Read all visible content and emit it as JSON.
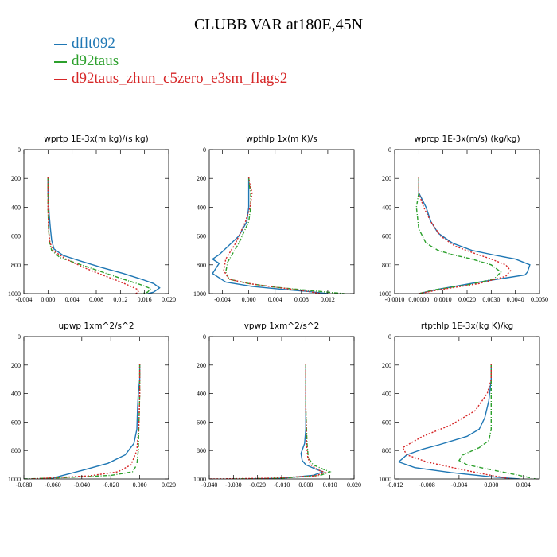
{
  "page_title": "CLUBB VAR at180E,45N",
  "legend": [
    {
      "label": "dflt092",
      "color": "#1f77b4"
    },
    {
      "label": "d92taus",
      "color": "#2ca02c"
    },
    {
      "label": "d92taus_zhun_c5zero_e3sm_flags2",
      "color": "#d62728"
    }
  ],
  "chart_data": [
    {
      "type": "line",
      "title": "wprtp  1E-3x(m kg)/(s kg)",
      "xlim": [
        -0.004,
        0.02
      ],
      "ylim": [
        0,
        1000
      ],
      "xticks": [
        -0.004,
        0.0,
        0.004,
        0.008,
        0.012,
        0.016,
        0.02
      ],
      "xticklabels": [
        "-0.004",
        "0.000",
        "0.004",
        "0.008",
        "0.012",
        "0.016",
        "0.020"
      ],
      "yticks": [
        0,
        200,
        400,
        600,
        800,
        1000
      ],
      "series": [
        {
          "name": "dflt092",
          "color": "#1f77b4",
          "dash": "",
          "x": [
            0,
            0,
            0.0002,
            0.0004,
            0.0006,
            0.001,
            0.0025,
            0.0055,
            0.009,
            0.0125,
            0.0155,
            0.0175,
            0.0185,
            0.0175,
            0.0165
          ],
          "y": [
            190,
            300,
            450,
            550,
            630,
            690,
            735,
            775,
            820,
            860,
            900,
            930,
            960,
            990,
            1000
          ]
        },
        {
          "name": "d92taus",
          "color": "#2ca02c",
          "dash": "5,2,1,2",
          "x": [
            0,
            0,
            0.0001,
            0.0003,
            0.0006,
            0.002,
            0.0055,
            0.009,
            0.0125,
            0.0155,
            0.017,
            0.0165,
            0.0155
          ],
          "y": [
            190,
            400,
            560,
            650,
            700,
            750,
            800,
            850,
            900,
            940,
            965,
            990,
            1000
          ]
        },
        {
          "name": "d92taus_zhun_c5zero_e3sm_flags2",
          "color": "#d62728",
          "dash": "2,2",
          "x": [
            0,
            0,
            0.0001,
            0.0003,
            0.0008,
            0.003,
            0.006,
            0.009,
            0.0115,
            0.0135,
            0.0148,
            0.015,
            0.0145
          ],
          "y": [
            190,
            400,
            560,
            640,
            700,
            760,
            820,
            870,
            910,
            945,
            970,
            990,
            1000
          ]
        }
      ]
    },
    {
      "type": "line",
      "title": "wpthlp  1x(m K)/s",
      "xlim": [
        -0.006,
        0.016
      ],
      "ylim": [
        0,
        1000
      ],
      "xticks": [
        -0.004,
        0.0,
        0.004,
        0.008,
        0.012
      ],
      "xticklabels": [
        "-0.004",
        "0.000",
        "0.004",
        "0.008",
        "0.012"
      ],
      "yticks": [
        0,
        200,
        400,
        600,
        800,
        1000
      ],
      "series": [
        {
          "name": "dflt092",
          "color": "#1f77b4",
          "dash": "",
          "x": [
            0,
            0,
            0,
            -0.0003,
            -0.0015,
            -0.0045,
            -0.0055,
            -0.0045,
            -0.0055,
            -0.0035,
            0.0005,
            0.005,
            0.009,
            0.012
          ],
          "y": [
            190,
            300,
            400,
            500,
            600,
            730,
            760,
            790,
            860,
            920,
            950,
            970,
            985,
            1000
          ]
        },
        {
          "name": "d92taus",
          "color": "#2ca02c",
          "dash": "5,2,1,2",
          "x": [
            0,
            0.0001,
            0.0003,
            0.0003,
            0,
            -0.0015,
            -0.0032,
            -0.0035,
            -0.003,
            0,
            0.004,
            0.0085,
            0.012,
            0.0145
          ],
          "y": [
            190,
            250,
            300,
            400,
            500,
            650,
            780,
            850,
            900,
            930,
            955,
            975,
            990,
            1000
          ]
        },
        {
          "name": "d92taus_zhun_c5zero_e3sm_flags2",
          "color": "#d62728",
          "dash": "2,2",
          "x": [
            0,
            0.0002,
            0.0005,
            0.0002,
            -0.0005,
            -0.002,
            -0.0035,
            -0.0038,
            -0.003,
            0,
            0.004,
            0.008,
            0.011
          ],
          "y": [
            190,
            250,
            300,
            400,
            500,
            650,
            760,
            840,
            900,
            930,
            955,
            978,
            1000
          ]
        }
      ]
    },
    {
      "type": "line",
      "title": "wprcp  1E-3x(m/s) (kg/kg)",
      "xlim": [
        -0.001,
        0.005
      ],
      "ylim": [
        0,
        1000
      ],
      "xticks": [
        -0.001,
        0.0,
        0.001,
        0.002,
        0.003,
        0.004,
        0.005
      ],
      "xticklabels": [
        "-0.0010",
        "0.00000",
        "0.0010",
        "0.0020",
        "0.0030",
        "0.0040",
        "0.0050"
      ],
      "yticks": [
        0,
        200,
        400,
        600,
        800,
        1000
      ],
      "series": [
        {
          "name": "dflt092",
          "color": "#1f77b4",
          "dash": "",
          "x": [
            0,
            0,
            0.0003,
            0.0005,
            0.0008,
            0.0014,
            0.0022,
            0.0032,
            0.004,
            0.0046,
            0.0045,
            0.0044,
            0.0025,
            0.0008,
            0
          ],
          "y": [
            190,
            300,
            400,
            500,
            580,
            650,
            700,
            735,
            760,
            800,
            850,
            870,
            920,
            970,
            1000
          ]
        },
        {
          "name": "d92taus",
          "color": "#2ca02c",
          "dash": "5,2,1,2",
          "x": [
            0,
            0,
            -0.0001,
            0,
            0.0003,
            0.0008,
            0.0014,
            0.0022,
            0.003,
            0.0034,
            0.0031,
            0.002,
            0.0006,
            0
          ],
          "y": [
            190,
            300,
            400,
            550,
            650,
            700,
            730,
            760,
            800,
            850,
            900,
            940,
            975,
            1000
          ]
        },
        {
          "name": "d92taus_zhun_c5zero_e3sm_flags2",
          "color": "#d62728",
          "dash": "2,2",
          "x": [
            0,
            0,
            0.0002,
            0.0005,
            0.0009,
            0.0015,
            0.0023,
            0.003,
            0.0036,
            0.0038,
            0.0036,
            0.0025,
            0.0008,
            0
          ],
          "y": [
            190,
            300,
            400,
            500,
            600,
            670,
            720,
            760,
            800,
            840,
            880,
            930,
            975,
            1000
          ]
        }
      ]
    },
    {
      "type": "line",
      "title": "upwp   1xm^2/s^2",
      "xlim": [
        -0.08,
        0.02
      ],
      "ylim": [
        0,
        1000
      ],
      "xticks": [
        -0.08,
        -0.06,
        -0.04,
        -0.02,
        0.0,
        0.02
      ],
      "xticklabels": [
        "-0.080",
        "-0.060",
        "-0.040",
        "-0.020",
        "0.000",
        "0.020"
      ],
      "yticks": [
        0,
        200,
        400,
        600,
        800,
        1000
      ],
      "series": [
        {
          "name": "dflt092",
          "color": "#1f77b4",
          "dash": "",
          "x": [
            0,
            0,
            -0.001,
            -0.0015,
            -0.002,
            -0.004,
            -0.01,
            -0.022,
            -0.04,
            -0.055,
            -0.062
          ],
          "y": [
            190,
            300,
            400,
            500,
            650,
            750,
            830,
            890,
            940,
            980,
            1000
          ]
        },
        {
          "name": "d92taus",
          "color": "#2ca02c",
          "dash": "5,2,1,2",
          "x": [
            0,
            0,
            -0.0005,
            -0.001,
            -0.002,
            -0.005,
            -0.02,
            -0.05,
            -0.08
          ],
          "y": [
            190,
            400,
            600,
            800,
            900,
            950,
            975,
            990,
            1000
          ]
        },
        {
          "name": "d92taus_zhun_c5zero_e3sm_flags2",
          "color": "#d62728",
          "dash": "2,2",
          "x": [
            0,
            0,
            -0.0005,
            -0.002,
            -0.006,
            -0.015,
            -0.035,
            -0.06,
            -0.075
          ],
          "y": [
            190,
            400,
            600,
            800,
            900,
            950,
            978,
            992,
            1000
          ]
        }
      ]
    },
    {
      "type": "line",
      "title": "vpwp   1xm^2/s^2",
      "xlim": [
        -0.04,
        0.02
      ],
      "ylim": [
        0,
        1000
      ],
      "xticks": [
        -0.04,
        -0.03,
        -0.02,
        -0.01,
        0.0,
        0.01,
        0.02
      ],
      "xticklabels": [
        "-0.040",
        "-0.030",
        "-0.020",
        "-0.010",
        "0.000",
        "0.010",
        "0.020"
      ],
      "yticks": [
        0,
        200,
        400,
        600,
        800,
        1000
      ],
      "series": [
        {
          "name": "dflt092",
          "color": "#1f77b4",
          "dash": "",
          "x": [
            0,
            0,
            0,
            -0.0005,
            -0.002,
            -0.0015,
            0,
            0.004,
            0.007,
            0.003,
            -0.01,
            -0.022
          ],
          "y": [
            190,
            400,
            650,
            750,
            820,
            870,
            900,
            930,
            950,
            975,
            995,
            1000
          ]
        },
        {
          "name": "d92taus",
          "color": "#2ca02c",
          "dash": "5,2,1,2",
          "x": [
            0,
            0,
            0.0005,
            0.001,
            0.003,
            0.007,
            0.01,
            0.006,
            -0.01,
            -0.03
          ],
          "y": [
            190,
            500,
            750,
            850,
            900,
            930,
            950,
            975,
            995,
            1000
          ]
        },
        {
          "name": "d92taus_zhun_c5zero_e3sm_flags2",
          "color": "#d62728",
          "dash": "2,2",
          "x": [
            0,
            0,
            0.0003,
            0.0008,
            0.002,
            0.005,
            0.008,
            0.004,
            -0.015,
            -0.04
          ],
          "y": [
            190,
            500,
            750,
            850,
            900,
            935,
            955,
            978,
            995,
            1000
          ]
        }
      ]
    },
    {
      "type": "line",
      "title": "rtpthlp  1E-3x(kg K)/kg",
      "xlim": [
        -0.012,
        0.006
      ],
      "ylim": [
        0,
        1000
      ],
      "xticks": [
        -0.012,
        -0.008,
        -0.004,
        0.0,
        0.004
      ],
      "xticklabels": [
        "-0.012",
        "-0.008",
        "-0.004",
        "0.000",
        "0.004"
      ],
      "yticks": [
        0,
        200,
        400,
        600,
        800,
        1000
      ],
      "series": [
        {
          "name": "dflt092",
          "color": "#1f77b4",
          "dash": "",
          "x": [
            0,
            0,
            -0.0003,
            -0.0008,
            -0.0015,
            -0.003,
            -0.0065,
            -0.0085,
            -0.0105,
            -0.0115,
            -0.0095,
            -0.005,
            0,
            0.0035
          ],
          "y": [
            190,
            300,
            450,
            570,
            650,
            700,
            760,
            790,
            830,
            880,
            920,
            955,
            985,
            1000
          ]
        },
        {
          "name": "d92taus",
          "color": "#2ca02c",
          "dash": "5,2,1,2",
          "x": [
            0,
            0,
            0,
            0,
            -0.0003,
            -0.0015,
            -0.0035,
            -0.004,
            -0.003,
            0,
            0.0035,
            0.0055
          ],
          "y": [
            190,
            300,
            500,
            650,
            730,
            780,
            830,
            870,
            900,
            935,
            975,
            1000
          ]
        },
        {
          "name": "d92taus_zhun_c5zero_e3sm_flags2",
          "color": "#d62728",
          "dash": "2,2",
          "x": [
            0,
            0,
            -0.0005,
            -0.002,
            -0.005,
            -0.0085,
            -0.011,
            -0.0105,
            -0.008,
            -0.004,
            -0.0005,
            0.0025
          ],
          "y": [
            190,
            300,
            400,
            520,
            620,
            700,
            780,
            830,
            880,
            930,
            970,
            1000
          ]
        }
      ]
    }
  ]
}
